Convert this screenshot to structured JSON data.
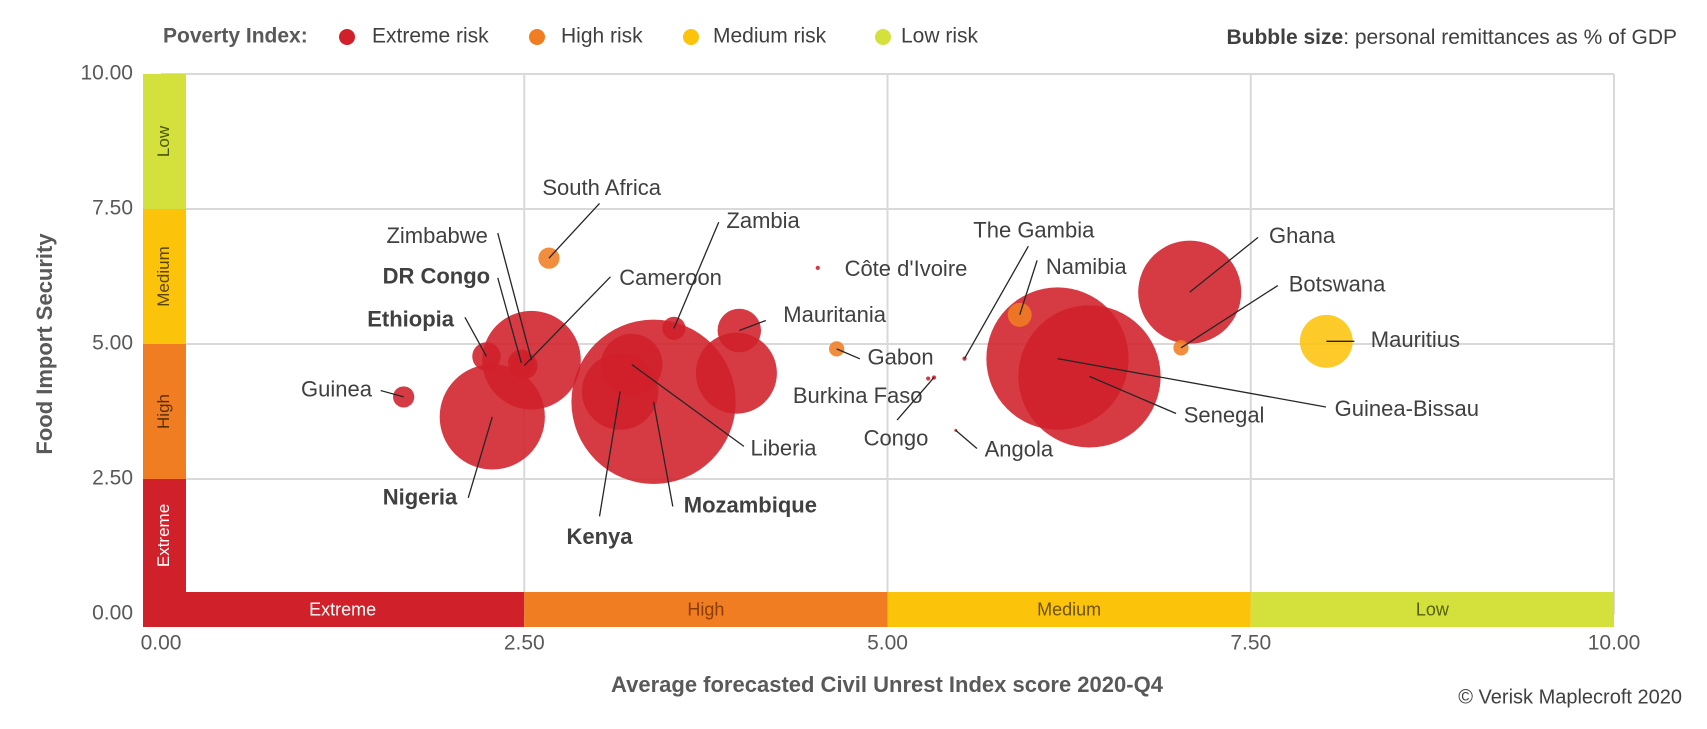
{
  "chart_data": {
    "type": "bubble",
    "xlabel": "Average forecasted Civil Unrest Index score 2020-Q4",
    "ylabel": "Food Import Security",
    "legend_title": "Poverty Index:",
    "size_legend_label": "Bubble size",
    "size_legend_text": ": personal remittances as % of GDP",
    "source": "© Verisk Maplecroft 2020",
    "xlim": [
      0,
      10
    ],
    "ylim": [
      0,
      10
    ],
    "xticks": [
      {
        "value": 0,
        "label": "0.00"
      },
      {
        "value": 2.5,
        "label": "2.50"
      },
      {
        "value": 5,
        "label": "5.00"
      },
      {
        "value": 7.5,
        "label": "7.50"
      },
      {
        "value": 10,
        "label": "10.00"
      }
    ],
    "yticks": [
      {
        "value": 0,
        "label": "0.00"
      },
      {
        "value": 2.5,
        "label": "2.50"
      },
      {
        "value": 5,
        "label": "5.00"
      },
      {
        "value": 7.5,
        "label": "7.50"
      },
      {
        "value": 10,
        "label": "10.00"
      }
    ],
    "grid": true,
    "x_bands": [
      {
        "from": 0,
        "to": 2.5,
        "label": "Extreme",
        "color": "#d0202a",
        "text_color": "#ffffff"
      },
      {
        "from": 2.5,
        "to": 5,
        "label": "High",
        "color": "#f07d22",
        "text_color": "#8a3d00"
      },
      {
        "from": 5,
        "to": 7.5,
        "label": "Medium",
        "color": "#fcc30b",
        "text_color": "#6b5200"
      },
      {
        "from": 7.5,
        "to": 10,
        "label": "Low",
        "color": "#d4e03c",
        "text_color": "#55600a"
      }
    ],
    "y_bands": [
      {
        "from": 0,
        "to": 2.5,
        "label": "Extreme",
        "color": "#d0202a",
        "text_color": "#ffffff"
      },
      {
        "from": 2.5,
        "to": 5,
        "label": "High",
        "color": "#f07d22",
        "text_color": "#5a3000"
      },
      {
        "from": 5,
        "to": 7.5,
        "label": "Medium",
        "color": "#fcc30b",
        "text_color": "#5a4500"
      },
      {
        "from": 7.5,
        "to": 10,
        "label": "Low",
        "color": "#d4e03c",
        "text_color": "#4a5508"
      }
    ],
    "series": [
      {
        "name": "Extreme risk",
        "color": "#d0202a",
        "labels": [
          "Guinea",
          "Ethiopia",
          "Nigeria",
          "DR Congo",
          "Zimbabwe",
          "Cameroon",
          "Zambia",
          "Kenya",
          "Mozambique",
          "Liberia",
          "Mauritania",
          null,
          "Côte d'Ivoire",
          "Burkina Faso",
          "Congo",
          "The Gambia",
          "Angola",
          "Guinea-Bissau",
          "Senegal",
          "Ghana"
        ],
        "bold": [
          false,
          true,
          true,
          true,
          false,
          false,
          false,
          true,
          true,
          false,
          false,
          false,
          false,
          false,
          false,
          false,
          false,
          false,
          false,
          false
        ],
        "x": [
          1.67,
          2.24,
          2.28,
          2.48,
          2.55,
          2.5,
          3.53,
          3.16,
          3.39,
          3.24,
          3.98,
          3.96,
          4.52,
          5.28,
          5.32,
          5.53,
          5.47,
          6.17,
          6.39,
          7.08
        ],
        "values": [
          4.02,
          4.77,
          3.65,
          4.65,
          4.7,
          4.6,
          5.29,
          4.12,
          3.93,
          4.62,
          5.25,
          4.46,
          6.41,
          4.36,
          4.38,
          4.73,
          3.4,
          4.73,
          4.4,
          5.96
        ],
        "sizes": [
          0.5,
          0.9,
          12.3,
          0.8,
          10.8,
          0.8,
          0.6,
          6.5,
          30,
          4.2,
          2.1,
          7.3,
          0.02,
          0.02,
          0.02,
          0.02,
          0.01,
          22.5,
          22.5,
          11.8
        ]
      },
      {
        "name": "High risk",
        "color": "#f07d22",
        "labels": [
          "South Africa",
          "Gabon",
          "Namibia",
          "Botswana"
        ],
        "bold": [
          false,
          false,
          false,
          false
        ],
        "x": [
          2.67,
          4.65,
          5.91,
          7.02
        ],
        "values": [
          6.59,
          4.91,
          5.54,
          4.93
        ],
        "sizes": [
          0.5,
          0.26,
          0.64,
          0.26
        ]
      },
      {
        "name": "Medium risk",
        "color": "#fcc30b",
        "labels": [
          "Mauritius"
        ],
        "bold": [
          false
        ],
        "x": [
          8.02
        ],
        "values": [
          5.05
        ],
        "sizes": [
          3.1
        ]
      },
      {
        "name": "Low risk",
        "color": "#d4e03c",
        "labels": [],
        "bold": [],
        "x": [],
        "values": [],
        "sizes": []
      }
    ]
  }
}
